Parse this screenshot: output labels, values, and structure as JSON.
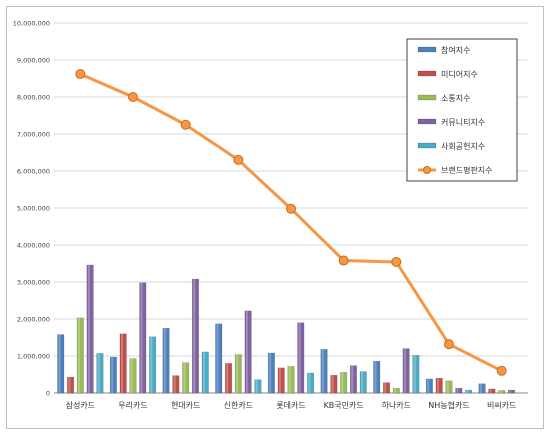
{
  "chart_data": {
    "type": "bar",
    "categories": [
      "삼성카드",
      "우리카드",
      "현대카드",
      "신한카드",
      "롯데카드",
      "KB국민카드",
      "하나카드",
      "NH농협카드",
      "비씨카드"
    ],
    "ylim": [
      0,
      10000000
    ],
    "yticks": [
      "0",
      "1,000,000",
      "2,000,000",
      "3,000,000",
      "4,000,000",
      "5,000,000",
      "6,000,000",
      "7,000,000",
      "8,000,000",
      "9,000,000",
      "10,000,000"
    ],
    "grid": true,
    "legend_position": "top-right",
    "series": [
      {
        "name": "참여지수",
        "color": "#4f81bd",
        "values": [
          1580000,
          970000,
          1750000,
          1870000,
          1080000,
          1180000,
          860000,
          380000,
          250000
        ]
      },
      {
        "name": "미디어지수",
        "color": "#c0504d",
        "values": [
          430000,
          1600000,
          470000,
          800000,
          680000,
          480000,
          280000,
          400000,
          110000
        ]
      },
      {
        "name": "소통지수",
        "color": "#9bbb59",
        "values": [
          2030000,
          930000,
          820000,
          1040000,
          720000,
          560000,
          130000,
          330000,
          70000
        ]
      },
      {
        "name": "커뮤니티지수",
        "color": "#8064a2",
        "values": [
          3460000,
          2980000,
          3080000,
          2220000,
          1900000,
          740000,
          1200000,
          130000,
          80000
        ]
      },
      {
        "name": "사회공헌지수",
        "color": "#4bacc6",
        "values": [
          1070000,
          1520000,
          1110000,
          360000,
          540000,
          580000,
          1020000,
          80000,
          0
        ]
      }
    ],
    "line_series": {
      "name": "브랜드평판지수",
      "color": "#f79646",
      "values": [
        8620000,
        8000000,
        7250000,
        6300000,
        4980000,
        3580000,
        3540000,
        1320000,
        600000
      ]
    }
  }
}
